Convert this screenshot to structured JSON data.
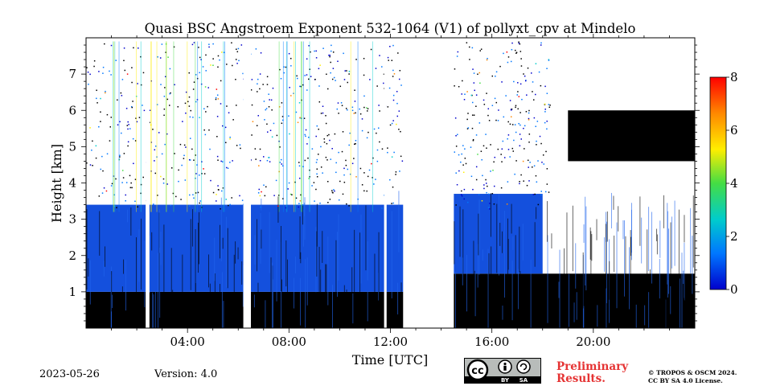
{
  "chart_data": {
    "type": "heatmap",
    "title": "Quasi BSC Angstroem Exponent 532-1064 (V1) of pollyxt_cpv at Mindelo",
    "xlabel": "Time [UTC]",
    "ylabel": "Height [km]",
    "xlim": [
      0,
      24
    ],
    "ylim": [
      0,
      8
    ],
    "x_ticks": [
      4,
      8,
      12,
      16,
      20
    ],
    "x_tick_labels": [
      "04:00",
      "08:00",
      "12:00",
      "16:00",
      "20:00"
    ],
    "y_ticks": [
      1,
      2,
      3,
      4,
      5,
      6,
      7
    ],
    "y_tick_labels": [
      "1",
      "2",
      "3",
      "4",
      "5",
      "6",
      "7"
    ],
    "colorbar": {
      "range": [
        0,
        8
      ],
      "ticks": [
        0,
        2,
        4,
        6,
        8
      ],
      "tick_labels": [
        "0",
        "2",
        "4",
        "6",
        "8"
      ],
      "colormap": [
        "#0000cc",
        "#0077ff",
        "#00cccc",
        "#44dd44",
        "#ffee00",
        "#ff8800",
        "#ff0000"
      ]
    },
    "data_gaps_utc": [
      [
        12.5,
        14.5
      ]
    ],
    "layers": [
      {
        "name": "near-surface layer (Angstroem ~0, black)",
        "start": 0.0,
        "end": 12.5,
        "base_km": 0.0,
        "top_km": 1.0,
        "value": 0.0
      },
      {
        "name": "aerosol layer (Angstroem ~0.3-0.6)",
        "start": 0.0,
        "end": 12.5,
        "base_km": 1.0,
        "top_km": 3.4,
        "value": 0.4
      },
      {
        "name": "near-surface layer (Angstroem ~0, black)",
        "start": 14.5,
        "end": 24.0,
        "base_km": 0.0,
        "top_km": 1.5,
        "value": 0.0
      },
      {
        "name": "aerosol layer (Angstroem ~0.3-0.6)",
        "start": 14.5,
        "end": 18.0,
        "base_km": 1.5,
        "top_km": 3.7,
        "value": 0.4
      },
      {
        "name": "elevated cloud layer",
        "start": 19.0,
        "end": 24.0,
        "base_km": 4.6,
        "top_km": 6.0,
        "value": 0.0
      }
    ]
  },
  "footer": {
    "date": "2023-05-26",
    "version": "Version: 4.0",
    "preliminary_line1": "Preliminary",
    "preliminary_line2": "Results.",
    "copyright_line1": "© TROPOS & OSCM 2024.",
    "copyright_line2": "CC BY SA 4.0 License.",
    "license_by": "BY",
    "license_sa": "SA",
    "license_cc": "cc"
  }
}
